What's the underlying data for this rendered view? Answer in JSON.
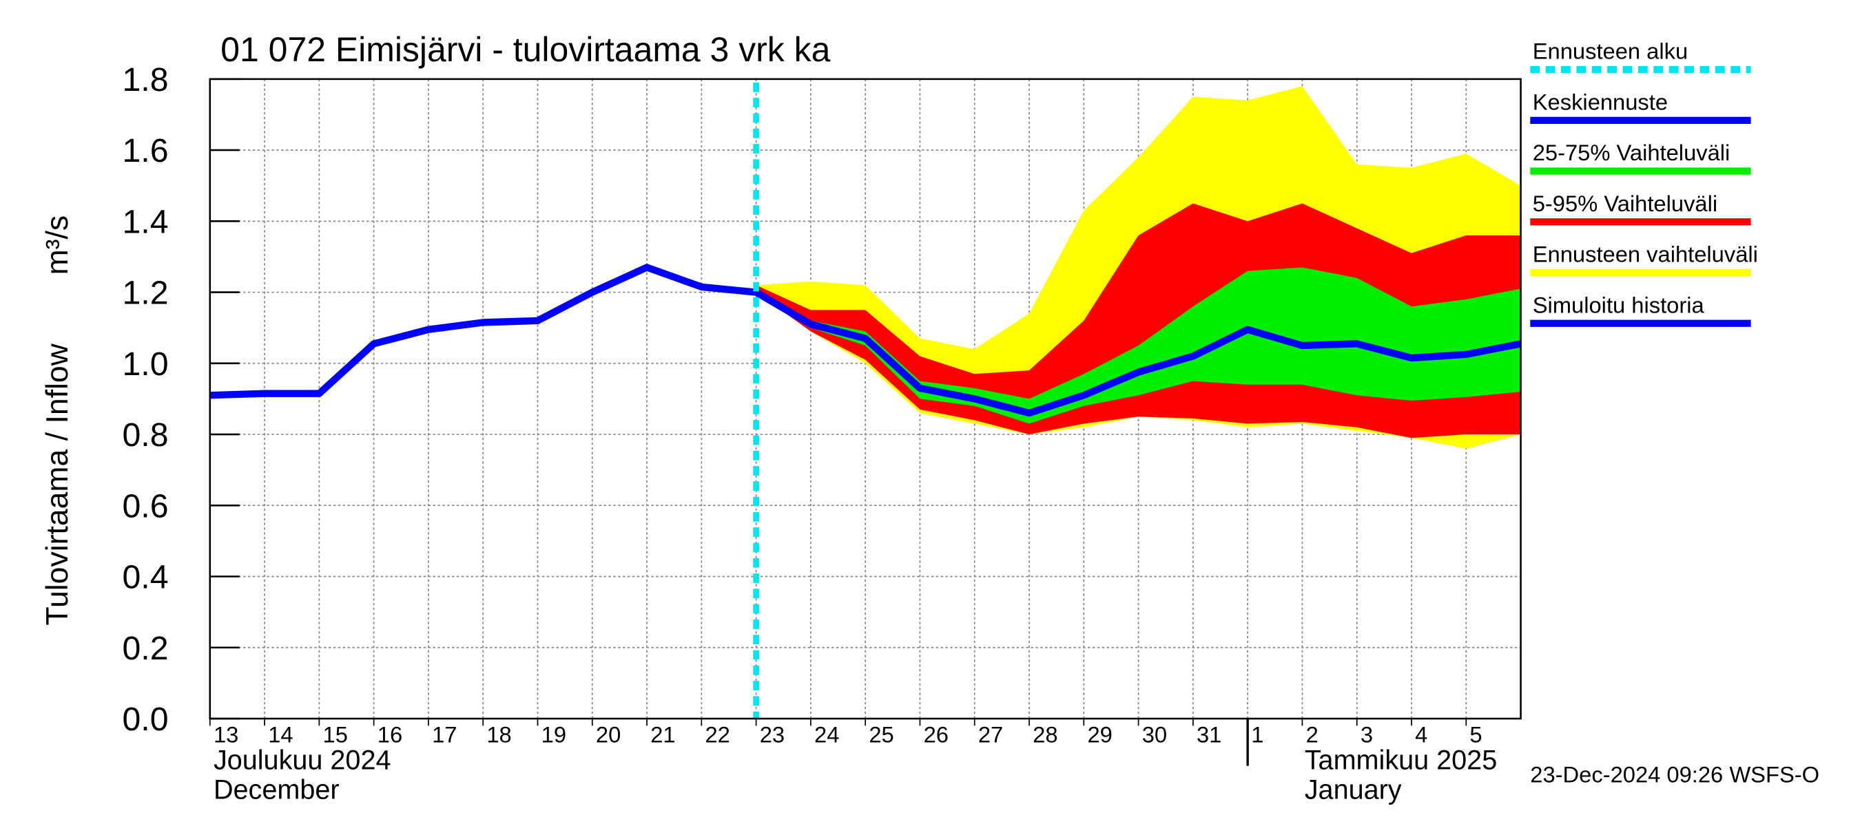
{
  "chart_data": {
    "type": "band-line",
    "title": "01 072 Eimisjärvi - tulovirtaama 3 vrk ka",
    "y_label": "Tulovirtaama / Inflow",
    "y_unit": "m³/s",
    "timestamp": "23-Dec-2024 09:26 WSFS-O",
    "xlim": [
      "2024-12-13",
      "2025-01-06"
    ],
    "xticks": [
      {
        "value": "2024-12-13",
        "label": "13"
      },
      {
        "value": "2024-12-14",
        "label": "14"
      },
      {
        "value": "2024-12-15",
        "label": "15"
      },
      {
        "value": "2024-12-16",
        "label": "16"
      },
      {
        "value": "2024-12-17",
        "label": "17"
      },
      {
        "value": "2024-12-18",
        "label": "18"
      },
      {
        "value": "2024-12-19",
        "label": "19"
      },
      {
        "value": "2024-12-20",
        "label": "20"
      },
      {
        "value": "2024-12-21",
        "label": "21"
      },
      {
        "value": "2024-12-22",
        "label": "22"
      },
      {
        "value": "2024-12-23",
        "label": "23"
      },
      {
        "value": "2024-12-24",
        "label": "24"
      },
      {
        "value": "2024-12-25",
        "label": "25"
      },
      {
        "value": "2024-12-26",
        "label": "26"
      },
      {
        "value": "2024-12-27",
        "label": "27"
      },
      {
        "value": "2024-12-28",
        "label": "28"
      },
      {
        "value": "2024-12-29",
        "label": "29"
      },
      {
        "value": "2024-12-30",
        "label": "30"
      },
      {
        "value": "2024-12-31",
        "label": "31"
      },
      {
        "value": "2025-01-01",
        "label": "1"
      },
      {
        "value": "2025-01-02",
        "label": "2"
      },
      {
        "value": "2025-01-03",
        "label": "3"
      },
      {
        "value": "2025-01-04",
        "label": "4"
      },
      {
        "value": "2025-01-05",
        "label": "5"
      }
    ],
    "month_labels": [
      {
        "value": "2024-12-13",
        "label": "Joulukuu  2024",
        "sublabel": "December"
      },
      {
        "value": "2025-01-01",
        "label": "Tammikuu  2025",
        "sublabel": "January"
      }
    ],
    "ylim": [
      0,
      1.8
    ],
    "yticks": [
      {
        "value": 0,
        "label": "0.0"
      },
      {
        "value": 0.2,
        "label": "0.2"
      },
      {
        "value": 0.4,
        "label": "0.4"
      },
      {
        "value": 0.6,
        "label": "0.6"
      },
      {
        "value": 0.8,
        "label": "0.8"
      },
      {
        "value": 1.0,
        "label": "1.0"
      },
      {
        "value": 1.2,
        "label": "1.2"
      },
      {
        "value": 1.4,
        "label": "1.4"
      },
      {
        "value": 1.6,
        "label": "1.6"
      },
      {
        "value": 1.8,
        "label": "1.8"
      }
    ],
    "grid": true,
    "forecast_start": {
      "name": "Ennusteen alku",
      "color": "#00e5ee",
      "x": "2024-12-23"
    },
    "bands": [
      {
        "name": "Ennusteen vaihteluväli",
        "color": "#ffff00",
        "x": [
          "2024-12-23",
          "2024-12-24",
          "2024-12-25",
          "2024-12-26",
          "2024-12-27",
          "2024-12-28",
          "2024-12-29",
          "2024-12-30",
          "2024-12-31",
          "2025-01-01",
          "2025-01-02",
          "2025-01-03",
          "2025-01-04",
          "2025-01-05",
          "2025-01-06"
        ],
        "upper": [
          1.22,
          1.23,
          1.22,
          1.07,
          1.04,
          1.14,
          1.43,
          1.58,
          1.75,
          1.74,
          1.78,
          1.56,
          1.55,
          1.59,
          1.5
        ],
        "lower": [
          1.2,
          1.09,
          1.0,
          0.86,
          0.83,
          0.8,
          0.82,
          0.85,
          0.84,
          0.82,
          0.83,
          0.81,
          0.79,
          0.76,
          0.8
        ]
      },
      {
        "name": "5-95% Vaihteluväli",
        "color": "#ff0000",
        "x": [
          "2024-12-23",
          "2024-12-24",
          "2024-12-25",
          "2024-12-26",
          "2024-12-27",
          "2024-12-28",
          "2024-12-29",
          "2024-12-30",
          "2024-12-31",
          "2025-01-01",
          "2025-01-02",
          "2025-01-03",
          "2025-01-04",
          "2025-01-05",
          "2025-01-06"
        ],
        "upper": [
          1.22,
          1.15,
          1.15,
          1.02,
          0.97,
          0.98,
          1.12,
          1.36,
          1.45,
          1.4,
          1.45,
          1.38,
          1.31,
          1.36,
          1.36
        ],
        "lower": [
          1.2,
          1.09,
          1.01,
          0.87,
          0.84,
          0.8,
          0.83,
          0.85,
          0.845,
          0.83,
          0.835,
          0.82,
          0.79,
          0.8,
          0.8
        ]
      },
      {
        "name": "25-75% Vaihteluväli",
        "color": "#00ee00",
        "x": [
          "2024-12-23",
          "2024-12-24",
          "2024-12-25",
          "2024-12-26",
          "2024-12-27",
          "2024-12-28",
          "2024-12-29",
          "2024-12-30",
          "2024-12-31",
          "2025-01-01",
          "2025-01-02",
          "2025-01-03",
          "2025-01-04",
          "2025-01-05",
          "2025-01-06"
        ],
        "upper": [
          1.21,
          1.12,
          1.09,
          0.95,
          0.93,
          0.9,
          0.97,
          1.05,
          1.16,
          1.26,
          1.27,
          1.24,
          1.16,
          1.18,
          1.21
        ],
        "lower": [
          1.2,
          1.1,
          1.05,
          0.9,
          0.88,
          0.83,
          0.88,
          0.91,
          0.95,
          0.94,
          0.94,
          0.91,
          0.895,
          0.905,
          0.92
        ]
      }
    ],
    "series": [
      {
        "name": "Keskiennuste",
        "color": "#0000ff",
        "x": [
          "2024-12-23",
          "2024-12-24",
          "2024-12-25",
          "2024-12-26",
          "2024-12-27",
          "2024-12-28",
          "2024-12-29",
          "2024-12-30",
          "2024-12-31",
          "2025-01-01",
          "2025-01-02",
          "2025-01-03",
          "2025-01-04",
          "2025-01-05",
          "2025-01-06"
        ],
        "values": [
          1.2,
          1.11,
          1.07,
          0.93,
          0.9,
          0.86,
          0.91,
          0.975,
          1.02,
          1.095,
          1.05,
          1.055,
          1.015,
          1.025,
          1.055
        ]
      },
      {
        "name": "Simuloitu historia",
        "color": "#0000ff",
        "x": [
          "2024-12-13",
          "2024-12-14",
          "2024-12-15",
          "2024-12-16",
          "2024-12-17",
          "2024-12-18",
          "2024-12-19",
          "2024-12-20",
          "2024-12-21",
          "2024-12-22",
          "2024-12-23"
        ],
        "values": [
          0.91,
          0.915,
          0.915,
          1.055,
          1.095,
          1.115,
          1.12,
          1.2,
          1.27,
          1.215,
          1.2
        ]
      }
    ],
    "legend_order": [
      "forecast_start",
      "series.0",
      "bands.2",
      "bands.1",
      "bands.0",
      "series.1"
    ]
  }
}
